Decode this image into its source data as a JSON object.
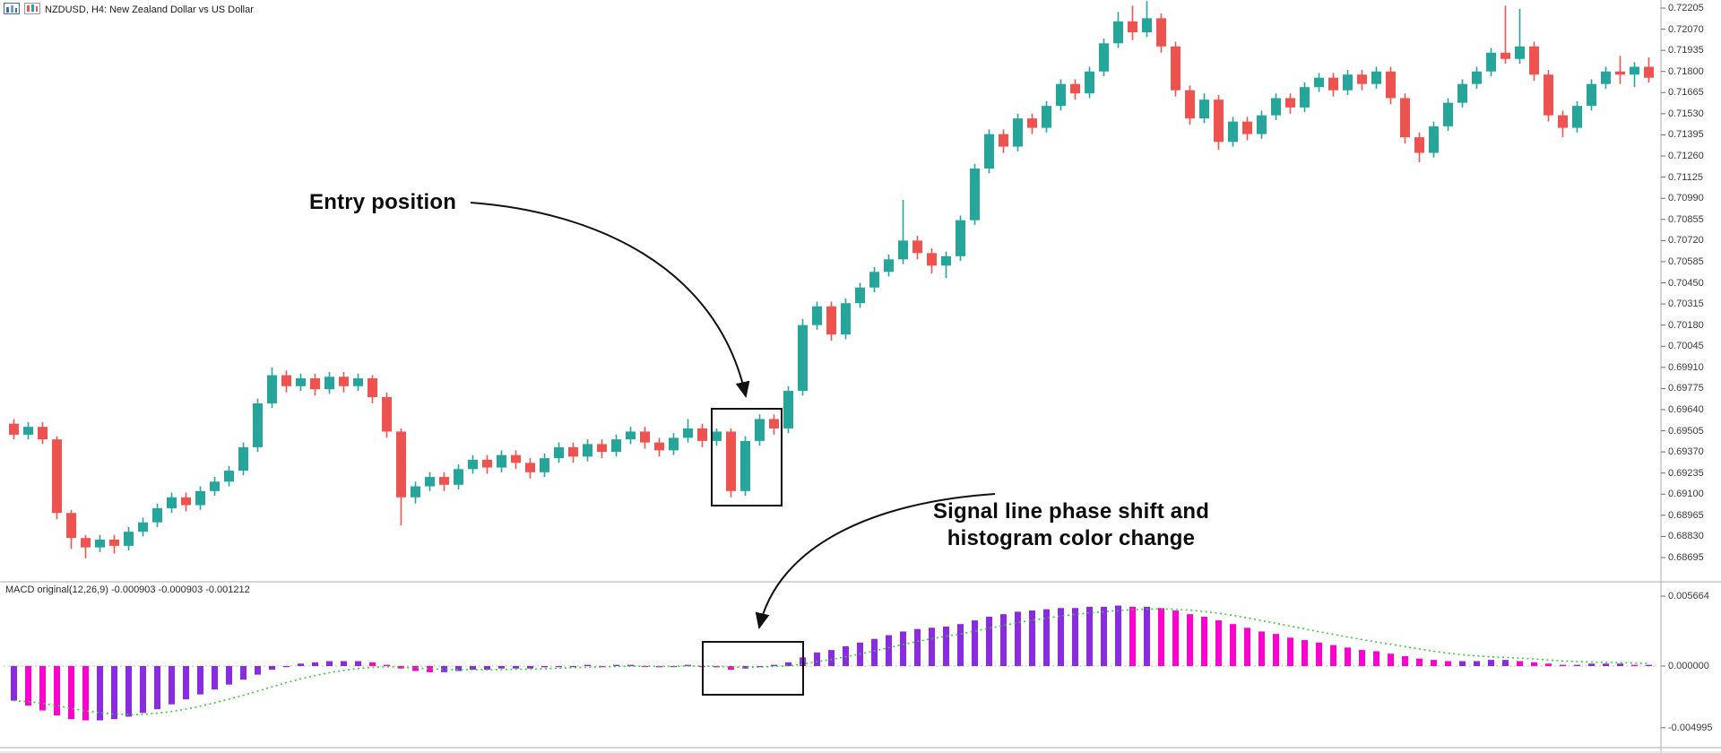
{
  "header": {
    "symbol_label": "NZDUSD, H4: New Zealand Dollar vs US Dollar",
    "icons": [
      "chart-window-icon",
      "candlestick-style-icon"
    ]
  },
  "annotations": {
    "entry": "Entry position",
    "signal_line1": "Signal line phase shift and",
    "signal_line2": "histogram color change"
  },
  "macd_panel": {
    "label": "MACD original(12,26,9) -0.000903 -0.000903 -0.001212",
    "axis_ticks": [
      "0.005664",
      "0.000000",
      "-0.004995"
    ]
  },
  "price_axis": {
    "ticks": [
      "0.72205",
      "0.72070",
      "0.71935",
      "0.71800",
      "0.71665",
      "0.71530",
      "0.71395",
      "0.71260",
      "0.71125",
      "0.70990",
      "0.70855",
      "0.70720",
      "0.70585",
      "0.70450",
      "0.70315",
      "0.70180",
      "0.70045",
      "0.69910",
      "0.69775",
      "0.69640",
      "0.69505",
      "0.69370",
      "0.69235",
      "0.69100",
      "0.68965",
      "0.68830",
      "0.68695"
    ]
  },
  "chart_data": {
    "type": "candlestick+macd",
    "symbol": "NZDUSD",
    "timeframe": "H4",
    "title": "NZDUSD, H4: New Zealand Dollar vs US Dollar",
    "legend_position": "none",
    "grid": false,
    "colors": {
      "bull": "#26a69a",
      "bear": "#ef5350",
      "hist_up": "#8a2be2",
      "hist_down": "#ff00d0",
      "signal": "#32cd32",
      "zero_line": "#bdbdbd",
      "separator": "#adadad"
    },
    "price": {
      "ylim": [
        0.68695,
        0.72205
      ],
      "candles": [
        [
          0.6955,
          0.6958,
          0.6945,
          0.6948
        ],
        [
          0.6948,
          0.6956,
          0.6945,
          0.6953
        ],
        [
          0.6953,
          0.6956,
          0.6942,
          0.6945
        ],
        [
          0.6945,
          0.6947,
          0.6894,
          0.6898
        ],
        [
          0.6898,
          0.69,
          0.6875,
          0.6882
        ],
        [
          0.6882,
          0.6884,
          0.6869,
          0.6876
        ],
        [
          0.6876,
          0.6884,
          0.6873,
          0.6881
        ],
        [
          0.6881,
          0.6884,
          0.6872,
          0.6877
        ],
        [
          0.6877,
          0.6889,
          0.6874,
          0.6886
        ],
        [
          0.6886,
          0.6895,
          0.6883,
          0.6892
        ],
        [
          0.6892,
          0.6904,
          0.6889,
          0.6901
        ],
        [
          0.6901,
          0.6911,
          0.6898,
          0.6908
        ],
        [
          0.6908,
          0.6911,
          0.6899,
          0.6903
        ],
        [
          0.6903,
          0.6915,
          0.69,
          0.6912
        ],
        [
          0.6912,
          0.6921,
          0.6909,
          0.6918
        ],
        [
          0.6918,
          0.6928,
          0.6915,
          0.6925
        ],
        [
          0.6925,
          0.6943,
          0.6922,
          0.694
        ],
        [
          0.694,
          0.6971,
          0.6937,
          0.6968
        ],
        [
          0.6968,
          0.6991,
          0.6965,
          0.6986
        ],
        [
          0.6986,
          0.6989,
          0.6975,
          0.6979
        ],
        [
          0.6979,
          0.6987,
          0.6976,
          0.6984
        ],
        [
          0.6984,
          0.6987,
          0.6973,
          0.6977
        ],
        [
          0.6977,
          0.6988,
          0.6974,
          0.6985
        ],
        [
          0.6985,
          0.6988,
          0.6975,
          0.6979
        ],
        [
          0.6979,
          0.6987,
          0.6976,
          0.6984
        ],
        [
          0.6984,
          0.6986,
          0.6968,
          0.6972
        ],
        [
          0.6972,
          0.6975,
          0.6946,
          0.695
        ],
        [
          0.695,
          0.6952,
          0.689,
          0.6908
        ],
        [
          0.6908,
          0.6918,
          0.6904,
          0.6915
        ],
        [
          0.6915,
          0.6924,
          0.6912,
          0.6921
        ],
        [
          0.6921,
          0.6924,
          0.6912,
          0.6916
        ],
        [
          0.6916,
          0.6929,
          0.6913,
          0.6926
        ],
        [
          0.6926,
          0.6935,
          0.6923,
          0.6932
        ],
        [
          0.6932,
          0.6935,
          0.6923,
          0.6927
        ],
        [
          0.6927,
          0.6938,
          0.6924,
          0.6935
        ],
        [
          0.6935,
          0.6938,
          0.6926,
          0.693
        ],
        [
          0.693,
          0.6933,
          0.692,
          0.6924
        ],
        [
          0.6924,
          0.6936,
          0.6921,
          0.6933
        ],
        [
          0.6933,
          0.6943,
          0.693,
          0.694
        ],
        [
          0.694,
          0.6943,
          0.693,
          0.6934
        ],
        [
          0.6934,
          0.6945,
          0.6931,
          0.6942
        ],
        [
          0.6942,
          0.6945,
          0.6933,
          0.6937
        ],
        [
          0.6937,
          0.6948,
          0.6934,
          0.6945
        ],
        [
          0.6945,
          0.6953,
          0.6942,
          0.695
        ],
        [
          0.695,
          0.6953,
          0.6939,
          0.6943
        ],
        [
          0.6943,
          0.6946,
          0.6934,
          0.6938
        ],
        [
          0.6938,
          0.6949,
          0.6935,
          0.6946
        ],
        [
          0.6946,
          0.6958,
          0.6943,
          0.6952
        ],
        [
          0.6952,
          0.6955,
          0.694,
          0.6944
        ],
        [
          0.6944,
          0.6952,
          0.6941,
          0.695
        ],
        [
          0.695,
          0.6952,
          0.6908,
          0.6912
        ],
        [
          0.6912,
          0.6947,
          0.6909,
          0.6944
        ],
        [
          0.6944,
          0.6961,
          0.6941,
          0.6958
        ],
        [
          0.6958,
          0.6961,
          0.6948,
          0.6952
        ],
        [
          0.6952,
          0.6979,
          0.6949,
          0.6976
        ],
        [
          0.6976,
          0.7022,
          0.6973,
          0.7018
        ],
        [
          0.7018,
          0.7033,
          0.7015,
          0.703
        ],
        [
          0.703,
          0.7033,
          0.7008,
          0.7012
        ],
        [
          0.7012,
          0.7035,
          0.7009,
          0.7032
        ],
        [
          0.7032,
          0.7045,
          0.7029,
          0.7042
        ],
        [
          0.7042,
          0.7055,
          0.7039,
          0.7052
        ],
        [
          0.7052,
          0.7063,
          0.7049,
          0.706
        ],
        [
          0.706,
          0.7098,
          0.7057,
          0.7072
        ],
        [
          0.7072,
          0.7075,
          0.706,
          0.7064
        ],
        [
          0.7064,
          0.7067,
          0.7051,
          0.7056
        ],
        [
          0.7056,
          0.7065,
          0.7048,
          0.7062
        ],
        [
          0.7062,
          0.7088,
          0.7059,
          0.7085
        ],
        [
          0.7085,
          0.7121,
          0.7082,
          0.7118
        ],
        [
          0.7118,
          0.7143,
          0.7115,
          0.714
        ],
        [
          0.714,
          0.7143,
          0.7128,
          0.7132
        ],
        [
          0.7132,
          0.7153,
          0.7129,
          0.715
        ],
        [
          0.715,
          0.7153,
          0.714,
          0.7144
        ],
        [
          0.7144,
          0.7161,
          0.7141,
          0.7158
        ],
        [
          0.7158,
          0.7175,
          0.7155,
          0.7172
        ],
        [
          0.7172,
          0.7175,
          0.7162,
          0.7166
        ],
        [
          0.7166,
          0.7183,
          0.7163,
          0.718
        ],
        [
          0.718,
          0.7201,
          0.7177,
          0.7198
        ],
        [
          0.7198,
          0.7218,
          0.7195,
          0.7212
        ],
        [
          0.7212,
          0.7222,
          0.72,
          0.7205
        ],
        [
          0.7205,
          0.7225,
          0.7202,
          0.7214
        ],
        [
          0.7214,
          0.7217,
          0.7192,
          0.7196
        ],
        [
          0.7196,
          0.7199,
          0.7164,
          0.7168
        ],
        [
          0.7168,
          0.7171,
          0.7146,
          0.715
        ],
        [
          0.715,
          0.7166,
          0.7147,
          0.7162
        ],
        [
          0.7162,
          0.7165,
          0.713,
          0.7135
        ],
        [
          0.7135,
          0.7151,
          0.7132,
          0.7148
        ],
        [
          0.7148,
          0.7151,
          0.7136,
          0.714
        ],
        [
          0.714,
          0.7155,
          0.7137,
          0.7152
        ],
        [
          0.7152,
          0.7166,
          0.7149,
          0.7163
        ],
        [
          0.7163,
          0.7166,
          0.7153,
          0.7157
        ],
        [
          0.7157,
          0.7173,
          0.7154,
          0.717
        ],
        [
          0.717,
          0.7179,
          0.7167,
          0.7176
        ],
        [
          0.7176,
          0.7179,
          0.7164,
          0.7168
        ],
        [
          0.7168,
          0.7181,
          0.7165,
          0.7178
        ],
        [
          0.7178,
          0.7181,
          0.7168,
          0.7172
        ],
        [
          0.7172,
          0.7183,
          0.7169,
          0.718
        ],
        [
          0.718,
          0.7183,
          0.7159,
          0.7163
        ],
        [
          0.7163,
          0.7166,
          0.7134,
          0.7138
        ],
        [
          0.7138,
          0.7141,
          0.7122,
          0.7128
        ],
        [
          0.7128,
          0.7148,
          0.7125,
          0.7145
        ],
        [
          0.7145,
          0.7163,
          0.7142,
          0.716
        ],
        [
          0.716,
          0.7175,
          0.7157,
          0.7172
        ],
        [
          0.7172,
          0.7183,
          0.7169,
          0.718
        ],
        [
          0.718,
          0.7195,
          0.7177,
          0.7192
        ],
        [
          0.7192,
          0.7222,
          0.7185,
          0.7188
        ],
        [
          0.7188,
          0.722,
          0.7185,
          0.7196
        ],
        [
          0.7196,
          0.7199,
          0.7174,
          0.7178
        ],
        [
          0.7178,
          0.7181,
          0.7148,
          0.7152
        ],
        [
          0.7152,
          0.7155,
          0.7138,
          0.7144
        ],
        [
          0.7144,
          0.7161,
          0.7141,
          0.7158
        ],
        [
          0.7158,
          0.7175,
          0.7155,
          0.7172
        ],
        [
          0.7172,
          0.7183,
          0.7169,
          0.718
        ],
        [
          0.718,
          0.719,
          0.7172,
          0.7178
        ],
        [
          0.7178,
          0.7186,
          0.717,
          0.7183
        ],
        [
          0.7183,
          0.7189,
          0.7173,
          0.7176
        ]
      ]
    },
    "macd": {
      "params": [
        12,
        26,
        9
      ],
      "ylim": [
        -0.004995,
        0.005664
      ],
      "signal_period": 9,
      "values": [
        -0.0028,
        -0.0032,
        -0.0036,
        -0.004,
        -0.0043,
        -0.0044,
        -0.0044,
        -0.0043,
        -0.0041,
        -0.0038,
        -0.0035,
        -0.0031,
        -0.0027,
        -0.0023,
        -0.0019,
        -0.0015,
        -0.0011,
        -0.0007,
        -0.0003,
        0.0,
        0.0002,
        0.0003,
        0.0004,
        0.0004,
        0.0004,
        0.0003,
        0.0001,
        -0.0002,
        -0.0004,
        -0.0005,
        -0.0005,
        -0.0004,
        -0.0003,
        -0.0003,
        -0.0002,
        -0.0002,
        -0.0002,
        -0.0001,
        0.0,
        0.0,
        0.0001,
        0.0,
        0.0001,
        0.0001,
        0.0,
        -0.0001,
        0.0,
        0.0001,
        0.0,
        -0.0001,
        -0.0003,
        -0.0002,
        0.0,
        0.0001,
        0.0003,
        0.0007,
        0.0011,
        0.0013,
        0.0016,
        0.0019,
        0.0022,
        0.0025,
        0.0028,
        0.003,
        0.0031,
        0.0032,
        0.0034,
        0.0037,
        0.004,
        0.0042,
        0.0044,
        0.0045,
        0.0046,
        0.0047,
        0.0047,
        0.0048,
        0.0048,
        0.0049,
        0.0048,
        0.0048,
        0.0047,
        0.0045,
        0.0042,
        0.004,
        0.0037,
        0.0034,
        0.0031,
        0.0028,
        0.0026,
        0.0023,
        0.0021,
        0.0019,
        0.0017,
        0.0015,
        0.0013,
        0.0012,
        0.001,
        0.0008,
        0.0006,
        0.0005,
        0.0004,
        0.0004,
        0.0004,
        0.0005,
        0.0005,
        0.0004,
        0.0003,
        0.0002,
        0.0001,
        0.0001,
        0.0002,
        0.0002,
        0.0002,
        0.0001,
        0.0001
      ]
    }
  }
}
